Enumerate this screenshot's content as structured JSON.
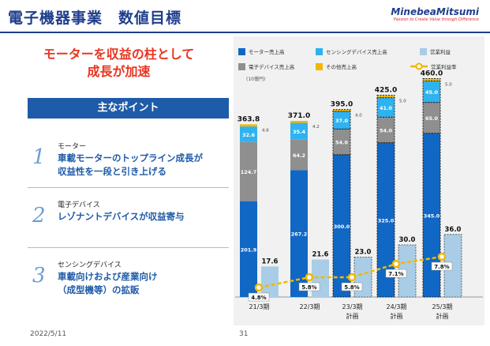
{
  "header": {
    "title": "電子機器事業　数値目標",
    "brand_name": "MinebeaMitsumi",
    "brand_tagline": "Passion to Create Value through Difference"
  },
  "headline": {
    "line1": "モーターを収益の柱として",
    "line2": "成長が加速"
  },
  "points": {
    "title": "主なポイント",
    "items": [
      {
        "number": "1",
        "category": "モーター",
        "line1": "車載モーターのトップライン成長が",
        "line2": "収益性を一段と引き上げる"
      },
      {
        "number": "2",
        "category": "電子デバイス",
        "line1": "レゾナントデバイスが収益寄与",
        "line2": ""
      },
      {
        "number": "3",
        "category": "センシングデバイス",
        "line1": "車載向けおよび産業向け",
        "line2": "（成型機等）の拡販"
      }
    ]
  },
  "footer": {
    "date": "2022/5/11",
    "page": "31"
  },
  "colors": {
    "motor": "#1167c4",
    "electronic": "#8f8f8f",
    "sensing": "#2fb3f0",
    "other": "#f2b700",
    "profit": "#a9cde6",
    "margin_line": "#f2b700"
  },
  "chart_data": {
    "type": "bar",
    "unit": "(10億円)",
    "categories": [
      "21/3期",
      "22/3期",
      "23/3期\n計画",
      "24/3期\n計画",
      "25/3期\n計画"
    ],
    "legend": [
      "モーター売上高",
      "センシングデバイス売上高",
      "営業利益",
      "電子デバイス売上高",
      "その他売上高",
      "営業利益率"
    ],
    "series": [
      {
        "name": "モーター売上高",
        "values": [
          201.9,
          267.2,
          300.0,
          325.0,
          345.0
        ]
      },
      {
        "name": "電子デバイス売上高",
        "values": [
          124.7,
          64.2,
          54.0,
          54.0,
          65.0
        ]
      },
      {
        "name": "センシングデバイス売上高",
        "values": [
          32.6,
          35.4,
          37.0,
          41.0,
          45.0
        ]
      },
      {
        "name": "その他売上高",
        "values": [
          4.6,
          4.2,
          4.0,
          5.0,
          5.0
        ]
      },
      {
        "name": "営業利益",
        "values": [
          17.6,
          21.6,
          23.0,
          30.0,
          36.0
        ]
      },
      {
        "name": "営業利益率",
        "values": [
          4.8,
          5.8,
          5.8,
          7.1,
          7.8
        ]
      }
    ],
    "totals": [
      363.8,
      371.0,
      395.0,
      425.0,
      460.0
    ],
    "total_labels": [
      "363.8",
      "371.0",
      "395.0",
      "425.0",
      "460.0"
    ],
    "motor_labels": [
      "201.9",
      "267.2",
      "300.0",
      "325.0",
      "345.0"
    ],
    "electronic_labels": [
      "124.7",
      "64.2",
      "54.0",
      "54.0",
      "65.0"
    ],
    "sensing_labels": [
      "32.6",
      "35.4",
      "37.0",
      "41.0",
      "45.0"
    ],
    "other_labels": [
      "4.6",
      "4.2",
      "4.0",
      "5.0",
      "5.0"
    ],
    "profit_labels": [
      "17.6",
      "21.6",
      "23.0",
      "30.0",
      "36.0"
    ],
    "margin_labels": [
      "4.8%",
      "5.8%",
      "5.8%",
      "7.1%",
      "7.8%"
    ],
    "planned": [
      false,
      false,
      true,
      true,
      true
    ]
  }
}
